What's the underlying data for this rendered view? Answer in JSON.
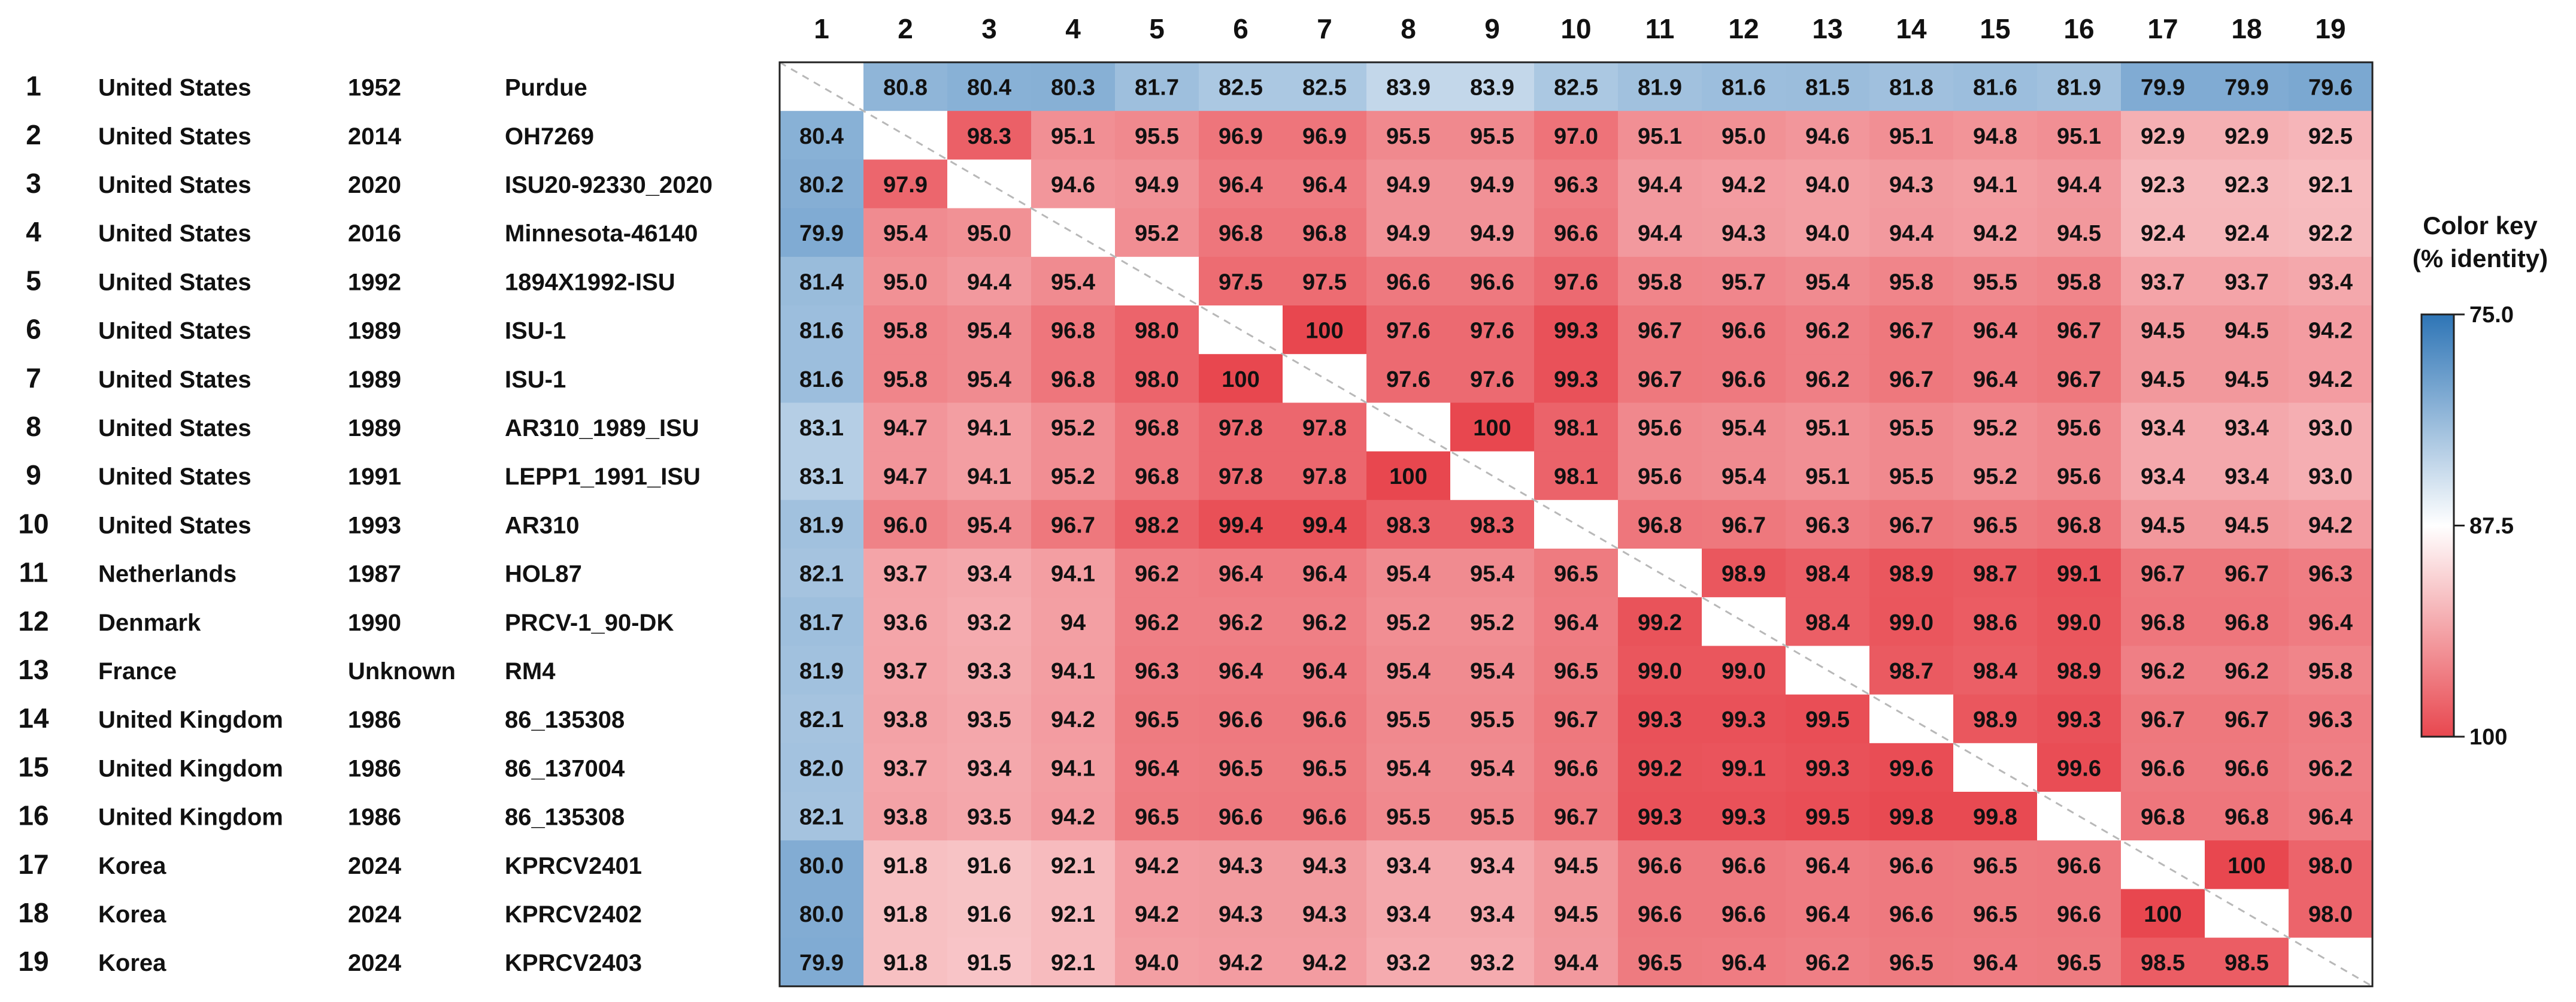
{
  "chart_data": {
    "type": "heatmap",
    "title": "",
    "xlabel": "",
    "ylabel": "",
    "col_labels": [
      "1",
      "2",
      "3",
      "4",
      "5",
      "6",
      "7",
      "8",
      "9",
      "10",
      "11",
      "12",
      "13",
      "14",
      "15",
      "16",
      "17",
      "18",
      "19"
    ],
    "rows": [
      {
        "num": "1",
        "country": "United States",
        "year": "1952",
        "strain": "Purdue"
      },
      {
        "num": "2",
        "country": "United States",
        "year": "2014",
        "strain": "OH7269"
      },
      {
        "num": "3",
        "country": "United States",
        "year": "2020",
        "strain": "ISU20-92330_2020"
      },
      {
        "num": "4",
        "country": "United States",
        "year": "2016",
        "strain": "Minnesota-46140"
      },
      {
        "num": "5",
        "country": "United States",
        "year": "1992",
        "strain": "1894X1992-ISU"
      },
      {
        "num": "6",
        "country": "United States",
        "year": "1989",
        "strain": "ISU-1"
      },
      {
        "num": "7",
        "country": "United States",
        "year": "1989",
        "strain": "ISU-1"
      },
      {
        "num": "8",
        "country": "United States",
        "year": "1989",
        "strain": "AR310_1989_ISU"
      },
      {
        "num": "9",
        "country": "United States",
        "year": "1991",
        "strain": "LEPP1_1991_ISU"
      },
      {
        "num": "10",
        "country": "United States",
        "year": "1993",
        "strain": "AR310"
      },
      {
        "num": "11",
        "country": "Netherlands",
        "year": "1987",
        "strain": "HOL87"
      },
      {
        "num": "12",
        "country": "Denmark",
        "year": "1990",
        "strain": "PRCV-1_90-DK"
      },
      {
        "num": "13",
        "country": "France",
        "year": "Unknown",
        "strain": "RM4"
      },
      {
        "num": "14",
        "country": "United Kingdom",
        "year": "1986",
        "strain": "86_135308"
      },
      {
        "num": "15",
        "country": "United Kingdom",
        "year": "1986",
        "strain": "86_137004"
      },
      {
        "num": "16",
        "country": "United Kingdom",
        "year": "1986",
        "strain": "86_135308"
      },
      {
        "num": "17",
        "country": "Korea",
        "year": "2024",
        "strain": "KPRCV2401"
      },
      {
        "num": "18",
        "country": "Korea",
        "year": "2024",
        "strain": "KPRCV2402"
      },
      {
        "num": "19",
        "country": "Korea",
        "year": "2024",
        "strain": "KPRCV2403"
      }
    ],
    "values": [
      [
        "",
        "80.8",
        "80.4",
        "80.3",
        "81.7",
        "82.5",
        "82.5",
        "83.9",
        "83.9",
        "82.5",
        "81.9",
        "81.6",
        "81.5",
        "81.8",
        "81.6",
        "81.9",
        "79.9",
        "79.9",
        "79.6"
      ],
      [
        "80.4",
        "",
        "98.3",
        "95.1",
        "95.5",
        "96.9",
        "96.9",
        "95.5",
        "95.5",
        "97.0",
        "95.1",
        "95.0",
        "94.6",
        "95.1",
        "94.8",
        "95.1",
        "92.9",
        "92.9",
        "92.5"
      ],
      [
        "80.2",
        "97.9",
        "",
        "94.6",
        "94.9",
        "96.4",
        "96.4",
        "94.9",
        "94.9",
        "96.3",
        "94.4",
        "94.2",
        "94.0",
        "94.3",
        "94.1",
        "94.4",
        "92.3",
        "92.3",
        "92.1"
      ],
      [
        "79.9",
        "95.4",
        "95.0",
        "",
        "95.2",
        "96.8",
        "96.8",
        "94.9",
        "94.9",
        "96.6",
        "94.4",
        "94.3",
        "94.0",
        "94.4",
        "94.2",
        "94.5",
        "92.4",
        "92.4",
        "92.2"
      ],
      [
        "81.4",
        "95.0",
        "94.4",
        "95.4",
        "",
        "97.5",
        "97.5",
        "96.6",
        "96.6",
        "97.6",
        "95.8",
        "95.7",
        "95.4",
        "95.8",
        "95.5",
        "95.8",
        "93.7",
        "93.7",
        "93.4"
      ],
      [
        "81.6",
        "95.8",
        "95.4",
        "96.8",
        "98.0",
        "",
        "100",
        "97.6",
        "97.6",
        "99.3",
        "96.7",
        "96.6",
        "96.2",
        "96.7",
        "96.4",
        "96.7",
        "94.5",
        "94.5",
        "94.2"
      ],
      [
        "81.6",
        "95.8",
        "95.4",
        "96.8",
        "98.0",
        "100",
        "",
        "97.6",
        "97.6",
        "99.3",
        "96.7",
        "96.6",
        "96.2",
        "96.7",
        "96.4",
        "96.7",
        "94.5",
        "94.5",
        "94.2"
      ],
      [
        "83.1",
        "94.7",
        "94.1",
        "95.2",
        "96.8",
        "97.8",
        "97.8",
        "",
        "100",
        "98.1",
        "95.6",
        "95.4",
        "95.1",
        "95.5",
        "95.2",
        "95.6",
        "93.4",
        "93.4",
        "93.0"
      ],
      [
        "83.1",
        "94.7",
        "94.1",
        "95.2",
        "96.8",
        "97.8",
        "97.8",
        "100",
        "",
        "98.1",
        "95.6",
        "95.4",
        "95.1",
        "95.5",
        "95.2",
        "95.6",
        "93.4",
        "93.4",
        "93.0"
      ],
      [
        "81.9",
        "96.0",
        "95.4",
        "96.7",
        "98.2",
        "99.4",
        "99.4",
        "98.3",
        "98.3",
        "",
        "96.8",
        "96.7",
        "96.3",
        "96.7",
        "96.5",
        "96.8",
        "94.5",
        "94.5",
        "94.2"
      ],
      [
        "82.1",
        "93.7",
        "93.4",
        "94.1",
        "96.2",
        "96.4",
        "96.4",
        "95.4",
        "95.4",
        "96.5",
        "",
        "98.9",
        "98.4",
        "98.9",
        "98.7",
        "99.1",
        "96.7",
        "96.7",
        "96.3"
      ],
      [
        "81.7",
        "93.6",
        "93.2",
        "94",
        "96.2",
        "96.2",
        "96.2",
        "95.2",
        "95.2",
        "96.4",
        "99.2",
        "",
        "98.4",
        "99.0",
        "98.6",
        "99.0",
        "96.8",
        "96.8",
        "96.4"
      ],
      [
        "81.9",
        "93.7",
        "93.3",
        "94.1",
        "96.3",
        "96.4",
        "96.4",
        "95.4",
        "95.4",
        "96.5",
        "99.0",
        "99.0",
        "",
        "98.7",
        "98.4",
        "98.9",
        "96.2",
        "96.2",
        "95.8"
      ],
      [
        "82.1",
        "93.8",
        "93.5",
        "94.2",
        "96.5",
        "96.6",
        "96.6",
        "95.5",
        "95.5",
        "96.7",
        "99.3",
        "99.3",
        "99.5",
        "",
        "98.9",
        "99.3",
        "96.7",
        "96.7",
        "96.3"
      ],
      [
        "82.0",
        "93.7",
        "93.4",
        "94.1",
        "96.4",
        "96.5",
        "96.5",
        "95.4",
        "95.4",
        "96.6",
        "99.2",
        "99.1",
        "99.3",
        "99.6",
        "",
        "99.6",
        "96.6",
        "96.6",
        "96.2"
      ],
      [
        "82.1",
        "93.8",
        "93.5",
        "94.2",
        "96.5",
        "96.6",
        "96.6",
        "95.5",
        "95.5",
        "96.7",
        "99.3",
        "99.3",
        "99.5",
        "99.8",
        "99.8",
        "",
        "96.8",
        "96.8",
        "96.4"
      ],
      [
        "80.0",
        "91.8",
        "91.6",
        "92.1",
        "94.2",
        "94.3",
        "94.3",
        "93.4",
        "93.4",
        "94.5",
        "96.6",
        "96.6",
        "96.4",
        "96.6",
        "96.5",
        "96.6",
        "",
        "100",
        "98.0"
      ],
      [
        "80.0",
        "91.8",
        "91.6",
        "92.1",
        "94.2",
        "94.3",
        "94.3",
        "93.4",
        "93.4",
        "94.5",
        "96.6",
        "96.6",
        "96.4",
        "96.6",
        "96.5",
        "96.6",
        "100",
        "",
        "98.0"
      ],
      [
        "79.9",
        "91.8",
        "91.5",
        "92.1",
        "94.0",
        "94.2",
        "94.2",
        "93.2",
        "93.2",
        "94.4",
        "96.5",
        "96.4",
        "96.2",
        "96.5",
        "96.4",
        "96.5",
        "98.5",
        "98.5",
        ""
      ]
    ],
    "color_key": {
      "title_line1": "Color key",
      "title_line2": "(% identity)",
      "min": 75.0,
      "mid": 87.5,
      "max": 100,
      "tick_labels": [
        "75.0",
        "87.5",
        "100"
      ],
      "colors": {
        "low": "#2e75b6",
        "mid": "#ffffff",
        "high": "#e8474f"
      }
    },
    "grid": false,
    "legend_position": "right"
  }
}
